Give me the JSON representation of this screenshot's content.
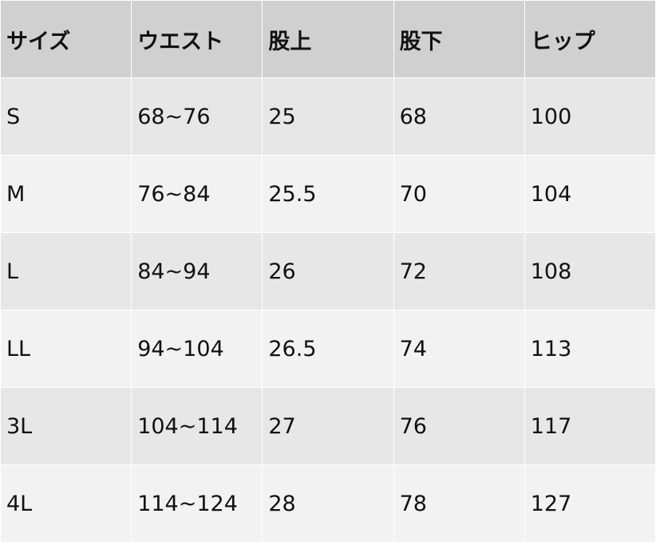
{
  "headers": [
    "サイズ",
    "ウエスト",
    "股上",
    "股下",
    "ヒップ"
  ],
  "rows": [
    [
      "S",
      "68~76",
      "25",
      "68",
      "100"
    ],
    [
      "M",
      "76~84",
      "25.5",
      "70",
      "104"
    ],
    [
      "L",
      "84~94",
      "26",
      "72",
      "108"
    ],
    [
      "LL",
      "94~104",
      "26.5",
      "74",
      "113"
    ],
    [
      "3L",
      "104~114",
      "27",
      "76",
      "117"
    ],
    [
      "4L",
      "114~124",
      "28",
      "78",
      "127"
    ]
  ]
}
